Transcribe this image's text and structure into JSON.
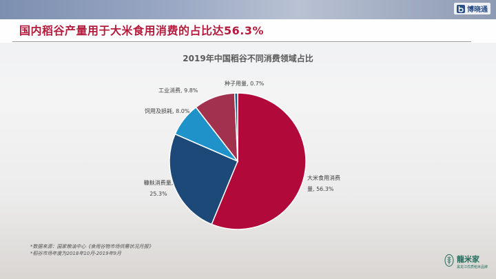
{
  "page": {
    "title": "国内稻谷产量用于大米食用消费的占比达56.3%",
    "brand": "博晓通",
    "logo": "龍米家",
    "logo_sub": "黑龙江优质稻米品牌"
  },
  "footnotes": [
    "*数据来源：国家粮油中心《食用谷物市场供需状况月报》",
    "*稻谷市场年度为2018年10月-2019年9月"
  ],
  "colors": {
    "title": "#b31b3c",
    "slice_food": "#b0093a",
    "slice_bran": "#1c4978",
    "slice_feed": "#1f93c9",
    "slice_industry": "#a2314d",
    "slice_seed": "#1e5e8a"
  },
  "chart_data": {
    "type": "pie",
    "title": "2019年中国稻谷不同消费领域占比",
    "slices": [
      {
        "name": "大米食用消费量",
        "value": 56.3,
        "label_lines": [
          "大米食用消费",
          "量, 56.3%"
        ]
      },
      {
        "name": "糠麸消费量",
        "value": 25.3,
        "label_lines": [
          "糠麸消费量,",
          "25.3%"
        ]
      },
      {
        "name": "饲用及损耗",
        "value": 8.0,
        "label_lines": [
          "饲用及损耗, 8.0%"
        ]
      },
      {
        "name": "工业消费",
        "value": 9.8,
        "label_lines": [
          "工业消费, 9.8%"
        ]
      },
      {
        "name": "种子用量",
        "value": 0.7,
        "label_lines": [
          "种子用量, 0.7%"
        ]
      }
    ],
    "start_angle_deg": 0,
    "direction": "clockwise"
  }
}
